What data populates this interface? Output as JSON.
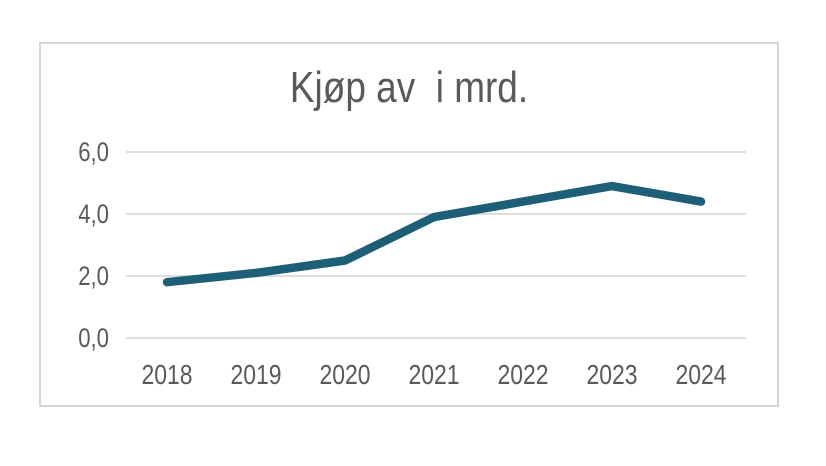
{
  "chart": {
    "background": "#ffffff",
    "border_color": "#d6d6d6",
    "title_color": "#595959",
    "axis_text_color": "#595959",
    "grid_color": "#d9d9d9",
    "line_color": "#1e5f78"
  },
  "chart_data": {
    "type": "line",
    "title": "Kjøp av  i mrd.",
    "categories": [
      "2018",
      "2019",
      "2020",
      "2021",
      "2022",
      "2023",
      "2024"
    ],
    "values": [
      1.8,
      2.1,
      2.5,
      3.9,
      4.4,
      4.9,
      4.4
    ],
    "xlabel": "",
    "ylabel": "",
    "ylim": [
      0,
      6
    ],
    "yticks": [
      {
        "label": "0,0",
        "value": 0
      },
      {
        "label": "2,0",
        "value": 2
      },
      {
        "label": "4,0",
        "value": 4
      },
      {
        "label": "6,0",
        "value": 6
      }
    ],
    "grid": true,
    "legend": false,
    "decimal_separator": ","
  }
}
